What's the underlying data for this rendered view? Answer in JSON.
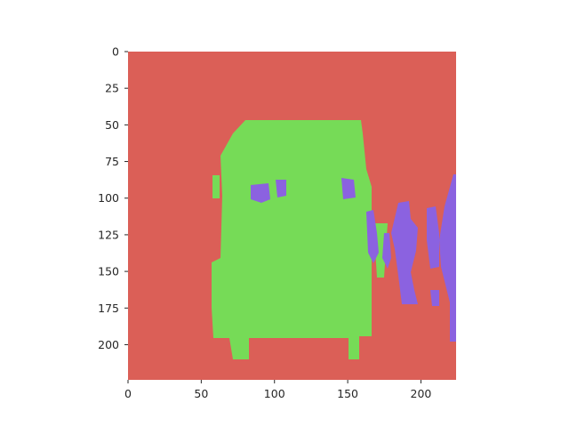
{
  "chart_data": {
    "type": "heatmap",
    "title": "",
    "xlabel": "",
    "ylabel": "",
    "xlim": [
      0,
      224
    ],
    "ylim": [
      224,
      0
    ],
    "grid": false,
    "x_ticks": [
      0,
      50,
      100,
      150,
      200
    ],
    "y_ticks": [
      0,
      25,
      50,
      75,
      100,
      125,
      150,
      175,
      200
    ],
    "x_tick_labels": [
      "0",
      "50",
      "100",
      "150",
      "200"
    ],
    "y_tick_labels": [
      "0",
      "25",
      "50",
      "75",
      "100",
      "125",
      "150",
      "175",
      "200"
    ],
    "description": "Segmentation mask image",
    "classes": [
      {
        "color": "#db5f57",
        "role": "background"
      },
      {
        "color": "#76db57",
        "role": "vehicle"
      },
      {
        "color": "#8b62e0",
        "role": "person"
      }
    ],
    "background_color": "#db5f57"
  }
}
